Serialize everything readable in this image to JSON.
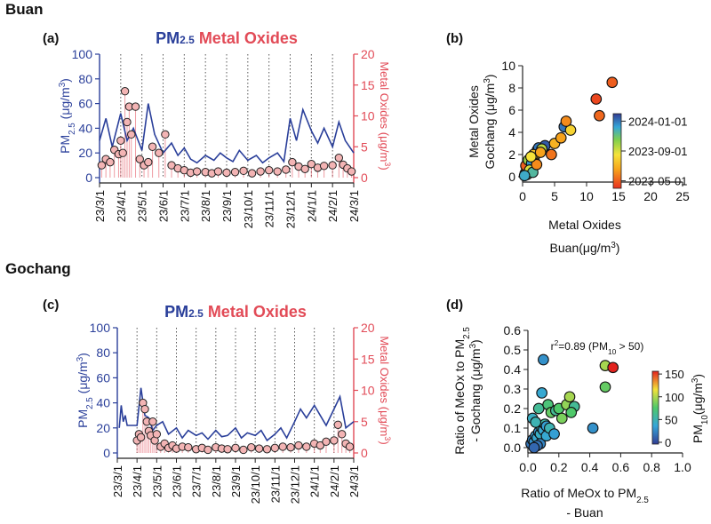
{
  "figure": {
    "site_headers": [
      "Buan",
      "Gochang"
    ],
    "panel_letters": [
      "(a)",
      "(b)",
      "(c)",
      "(d)"
    ]
  },
  "colors": {
    "pm": "#2a3f9a",
    "metal": "#e24b57",
    "metal_fill": "#f3b4b4",
    "grid": "#555555",
    "axis": "#222222"
  },
  "chart_data": [
    {
      "id": "a",
      "type": "line",
      "site": "Buan",
      "title_pm": "PM",
      "title_pm_sub": "2.5",
      "title_metal": "Metal Oxides",
      "ylabel_left": "PM2.5 (μg/m3)",
      "ylabel_right": "Metal Oxides (μg/m3)",
      "ylim_left": [
        0,
        100
      ],
      "ylim_right": [
        0,
        20
      ],
      "yticks_left": [
        "0",
        "20",
        "40",
        "60",
        "80",
        "100"
      ],
      "yticks_right": [
        "0",
        "5",
        "10",
        "15",
        "20"
      ],
      "xticks": [
        "23/3/1",
        "23/4/1",
        "23/5/1",
        "23/6/1",
        "23/7/1",
        "23/8/1",
        "23/9/1",
        "23/10/1",
        "23/11/1",
        "23/12/1",
        "24/1/1",
        "24/2/1",
        "24/3/1"
      ],
      "series": [
        {
          "name": "PM2.5",
          "axis": "left",
          "x": [
            0,
            0.3,
            0.6,
            1.0,
            1.3,
            1.6,
            2.0,
            2.3,
            2.6,
            3.0,
            3.4,
            3.7,
            4.0,
            4.3,
            4.6,
            5.0,
            5.4,
            5.7,
            6.0,
            6.3,
            6.6,
            7.0,
            7.4,
            7.7,
            8.0,
            8.4,
            8.7,
            9.0,
            9.3,
            9.6,
            10.0,
            10.3,
            10.6,
            11.0,
            11.3,
            11.6,
            12.0
          ],
          "values": [
            30,
            48,
            25,
            52,
            30,
            40,
            22,
            60,
            35,
            20,
            28,
            18,
            24,
            15,
            12,
            18,
            14,
            20,
            16,
            13,
            22,
            14,
            18,
            12,
            16,
            20,
            13,
            48,
            30,
            55,
            38,
            28,
            40,
            25,
            45,
            30,
            20
          ]
        },
        {
          "name": "Metal Oxides",
          "axis": "right",
          "x": [
            0.1,
            0.3,
            0.5,
            0.7,
            0.9,
            1.0,
            1.1,
            1.2,
            1.3,
            1.4,
            1.5,
            1.7,
            1.9,
            2.1,
            2.3,
            2.5,
            2.8,
            3.1,
            3.4,
            3.7,
            4.0,
            4.3,
            4.6,
            5.0,
            5.3,
            5.6,
            6.0,
            6.4,
            6.8,
            7.2,
            7.6,
            8.0,
            8.4,
            8.8,
            9.1,
            9.4,
            9.7,
            10.0,
            10.3,
            10.6,
            11.0,
            11.3,
            11.5,
            11.7,
            11.9
          ],
          "values": [
            2.0,
            3.0,
            2.5,
            4.5,
            3.8,
            6.0,
            4.0,
            14.0,
            9.0,
            11.5,
            7.0,
            11.5,
            3.0,
            2.0,
            2.5,
            5.0,
            4.0,
            7.0,
            2.0,
            1.5,
            1.2,
            0.8,
            1.0,
            0.9,
            0.7,
            1.0,
            0.8,
            0.9,
            1.1,
            0.7,
            1.0,
            1.2,
            1.0,
            1.3,
            2.5,
            1.8,
            1.4,
            2.2,
            1.6,
            1.9,
            2.0,
            3.2,
            2.1,
            1.5,
            1.0
          ]
        }
      ]
    },
    {
      "id": "b",
      "type": "scatter",
      "site": "Buan vs Gochang",
      "xlabel_line1": "Metal Oxides",
      "xlabel_line2": "Buan(μg/m3)",
      "ylabel_line1": "Metal Oxides",
      "ylabel_line2": "Gochang (μg/m3)",
      "xlim": [
        0,
        25
      ],
      "ylim": [
        0,
        10
      ],
      "xticks": [
        "0",
        "5",
        "10",
        "15",
        "20",
        "25"
      ],
      "yticks": [
        "0",
        "2",
        "4",
        "6",
        "8",
        "10"
      ],
      "colorbar_label_top": "2024-01-01",
      "colorbar_label_mid": "2023-09-01",
      "colorbar_label_bottom": "2023-05-01",
      "points": {
        "x": [
          0.4,
          0.6,
          0.8,
          1.0,
          1.2,
          1.5,
          1.8,
          2.0,
          2.3,
          0.5,
          0.9,
          1.4,
          2.5,
          3.5,
          1.7,
          6.5,
          5.0,
          7.5,
          0.7,
          1.1,
          1.6,
          2.2,
          3.0,
          4.5,
          6.0,
          6.8,
          11.5,
          14.0,
          0.3,
          1.3,
          2.8,
          12.0
        ],
        "y": [
          0.3,
          0.5,
          0.7,
          0.9,
          1.0,
          1.3,
          1.6,
          2.0,
          2.4,
          1.0,
          1.5,
          1.2,
          2.6,
          2.8,
          2.0,
          4.5,
          3.0,
          4.2,
          0.2,
          0.6,
          0.4,
          1.1,
          2.5,
          2.0,
          3.5,
          5.0,
          7.0,
          8.5,
          0.1,
          1.8,
          2.2,
          5.5
        ],
        "t": [
          0.2,
          0.4,
          0.6,
          0.8,
          0.9,
          0.7,
          0.3,
          0.5,
          0.95,
          0.1,
          0.6,
          0.85,
          0.9,
          0.95,
          0.35,
          0.9,
          0.3,
          0.4,
          0.7,
          0.5,
          0.75,
          0.2,
          0.55,
          0.15,
          0.25,
          0.2,
          0.05,
          0.1,
          0.8,
          0.45,
          0.25,
          0.12
        ]
      }
    },
    {
      "id": "c",
      "type": "line",
      "site": "Gochang",
      "title_pm": "PM",
      "title_pm_sub": "2.5",
      "title_metal": "Metal Oxides",
      "ylabel_left": "PM2.5 (μg/m3)",
      "ylabel_right": "Metal Oxides (μg/m3)",
      "ylim_left": [
        0,
        100
      ],
      "ylim_right": [
        0,
        20
      ],
      "yticks_left": [
        "0",
        "20",
        "40",
        "60",
        "80",
        "100"
      ],
      "yticks_right": [
        "0",
        "5",
        "10",
        "15",
        "20"
      ],
      "xticks": [
        "23/3/1",
        "23/4/1",
        "23/5/1",
        "23/6/1",
        "23/7/1",
        "23/8/1",
        "23/9/1",
        "23/10/1",
        "23/11/1",
        "23/12/1",
        "24/1/1",
        "24/2/1",
        "24/3/1"
      ],
      "series": [
        {
          "name": "PM2.5",
          "axis": "left",
          "x": [
            0.1,
            0.2,
            0.3,
            0.4,
            0.5,
            1.0,
            1.2,
            1.4,
            1.6,
            1.8,
            2.0,
            2.3,
            2.6,
            3.0,
            3.3,
            3.6,
            4.0,
            4.3,
            4.6,
            5.0,
            5.3,
            5.6,
            6.0,
            6.3,
            6.6,
            7.0,
            7.3,
            7.6,
            8.0,
            8.3,
            8.6,
            9.0,
            9.3,
            9.6,
            10.0,
            10.3,
            10.6,
            11.0,
            11.3,
            11.6,
            12.0
          ],
          "values": [
            20,
            38,
            25,
            30,
            22,
            22,
            52,
            30,
            28,
            18,
            22,
            25,
            15,
            20,
            12,
            18,
            14,
            16,
            11,
            18,
            13,
            14,
            20,
            12,
            16,
            14,
            18,
            10,
            15,
            20,
            12,
            25,
            35,
            28,
            38,
            30,
            22,
            35,
            45,
            20,
            25
          ]
        },
        {
          "name": "Metal Oxides",
          "axis": "right",
          "x": [
            1.0,
            1.1,
            1.2,
            1.3,
            1.4,
            1.5,
            1.6,
            1.7,
            1.8,
            1.9,
            2.0,
            2.2,
            2.4,
            2.6,
            2.8,
            3.0,
            3.3,
            3.6,
            4.0,
            4.3,
            4.6,
            5.0,
            5.3,
            5.6,
            6.0,
            6.4,
            6.8,
            7.2,
            7.6,
            8.0,
            8.4,
            8.8,
            9.2,
            9.6,
            10.0,
            10.3,
            10.6,
            11.0,
            11.2,
            11.4,
            11.6,
            11.8
          ],
          "values": [
            2.0,
            3.0,
            2.5,
            8.0,
            7.0,
            5.0,
            3.5,
            2.8,
            5.0,
            2.0,
            3.0,
            1.0,
            1.5,
            0.8,
            1.2,
            0.7,
            1.0,
            0.9,
            0.6,
            0.8,
            0.5,
            0.9,
            0.7,
            0.6,
            0.8,
            0.5,
            0.9,
            0.7,
            0.6,
            0.8,
            1.0,
            0.9,
            1.2,
            1.0,
            1.5,
            1.2,
            1.8,
            2.0,
            4.5,
            3.0,
            1.5,
            1.0
          ]
        }
      ]
    },
    {
      "id": "d",
      "type": "scatter",
      "site": "Gochang vs Buan",
      "xlabel_line1": "Ratio of MeOx to PM2.5",
      "xlabel_line2": "- Buan",
      "ylabel_line1": "Ratio of MeOx to PM2.5",
      "ylabel_line2": "- Gochang (μg/m3)",
      "annotation": "r2=0.89 (PM10 > 50)",
      "xlim": [
        0,
        1.0
      ],
      "ylim": [
        0,
        0.6
      ],
      "xticks": [
        "0.0",
        "0.2",
        "0.4",
        "0.6",
        "0.8",
        "1.0"
      ],
      "yticks": [
        "0.0",
        "0.1",
        "0.2",
        "0.3",
        "0.4",
        "0.5",
        "0.6"
      ],
      "colorbar_label": "PM10(μg/m3)",
      "colorbar_ticks": [
        "0",
        "50",
        "100",
        "150"
      ],
      "points": {
        "x": [
          0.02,
          0.03,
          0.04,
          0.05,
          0.06,
          0.07,
          0.08,
          0.09,
          0.1,
          0.11,
          0.12,
          0.03,
          0.05,
          0.07,
          0.09,
          0.13,
          0.15,
          0.18,
          0.2,
          0.22,
          0.25,
          0.27,
          0.1,
          0.08,
          0.06,
          0.04,
          0.12,
          0.14,
          0.5,
          0.55,
          0.5,
          0.42,
          0.3,
          0.28,
          0.17
        ],
        "y": [
          0.02,
          0.04,
          0.03,
          0.06,
          0.05,
          0.08,
          0.07,
          0.1,
          0.09,
          0.12,
          0.11,
          0.15,
          0.13,
          0.2,
          0.28,
          0.22,
          0.18,
          0.19,
          0.2,
          0.15,
          0.22,
          0.26,
          0.45,
          0.02,
          0.01,
          0.0,
          0.06,
          0.1,
          0.42,
          0.41,
          0.31,
          0.1,
          0.21,
          0.18,
          0.07
        ],
        "v": [
          20,
          25,
          30,
          35,
          40,
          30,
          45,
          50,
          40,
          55,
          35,
          45,
          50,
          60,
          40,
          70,
          80,
          60,
          75,
          85,
          90,
          95,
          30,
          25,
          20,
          15,
          40,
          50,
          95,
          150,
          80,
          30,
          60,
          75,
          35
        ]
      }
    }
  ]
}
